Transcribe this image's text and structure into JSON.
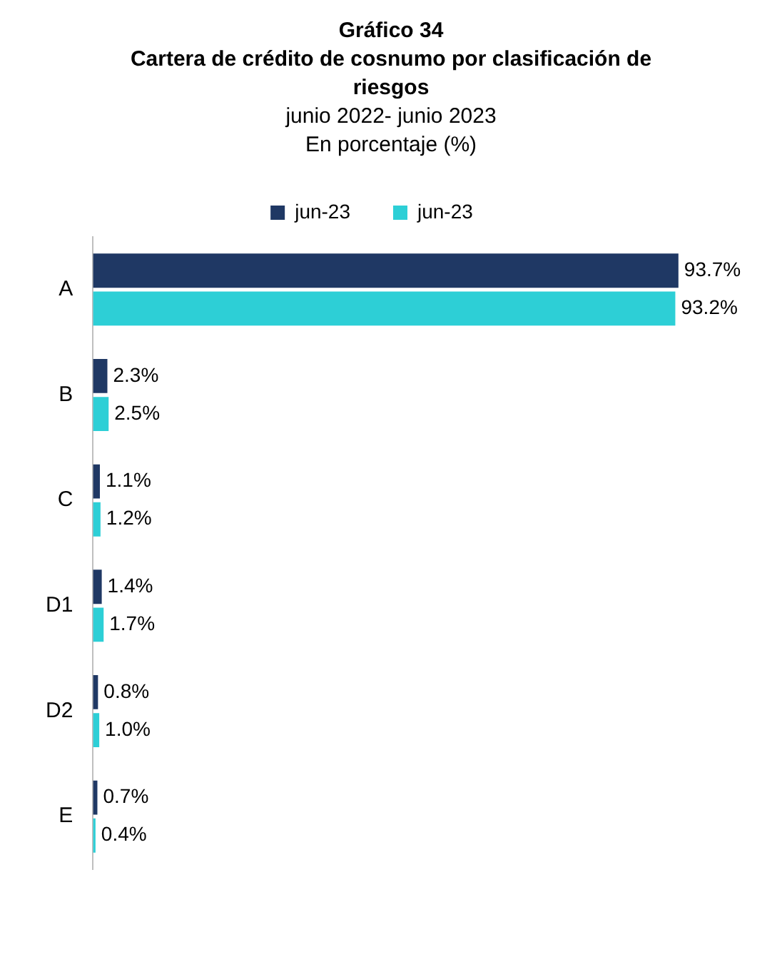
{
  "chart_data": {
    "type": "bar",
    "orientation": "horizontal",
    "title": "Gráfico 34\nCartera de crédito de cosnumo por clasificación de riesgos",
    "subtitle": "junio 2022- junio 2023\nEn porcentaje (%)",
    "categories": [
      "A",
      "B",
      "C",
      "D1",
      "D2",
      "E"
    ],
    "series": [
      {
        "name": "jun-23",
        "color": "#1f3864",
        "values": [
          93.7,
          2.3,
          1.1,
          1.4,
          0.8,
          0.7
        ],
        "value_labels": [
          "93.7%",
          "2.3%",
          "1.1%",
          "1.4%",
          "0.8%",
          "0.7%"
        ]
      },
      {
        "name": "jun-23",
        "color": "#2dcfd6",
        "values": [
          93.2,
          2.5,
          1.2,
          1.7,
          1.0,
          0.4
        ],
        "value_labels": [
          "93.2%",
          "2.5%",
          "1.2%",
          "1.7%",
          "1.0%",
          "0.4%"
        ]
      }
    ],
    "legend": "top",
    "tick_labels": "y"
  }
}
